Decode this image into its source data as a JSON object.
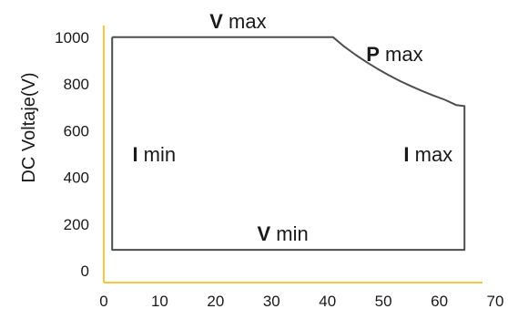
{
  "chart_data": {
    "type": "line",
    "title": "",
    "xlabel": "",
    "ylabel": "DC Voltaje(V)",
    "xlim": [
      0,
      70
    ],
    "ylim": [
      -50,
      1050
    ],
    "x_ticks": [
      0,
      10,
      20,
      30,
      40,
      50,
      60,
      70
    ],
    "y_ticks": [
      0,
      200,
      400,
      600,
      800,
      1000
    ],
    "grid": false,
    "legend": "none",
    "axis_color": "#f5c842",
    "line_color": "#4d4d4d",
    "series": [
      {
        "points": [
          [
            1.5,
            1000
          ],
          [
            41,
            1000
          ],
          [
            43,
            960
          ],
          [
            45,
            925
          ],
          [
            47,
            893
          ],
          [
            49,
            864
          ],
          [
            51,
            837
          ],
          [
            53,
            812
          ],
          [
            55,
            790
          ],
          [
            57,
            769
          ],
          [
            59,
            750
          ],
          [
            61,
            732
          ],
          [
            63,
            710
          ],
          [
            64.5,
            705
          ],
          [
            64.5,
            90
          ],
          [
            1.5,
            90
          ],
          [
            1.5,
            1000
          ]
        ]
      }
    ],
    "annotations": [
      {
        "id": "v-max",
        "bold": "V",
        "text": "max",
        "x": 24,
        "y": 1070
      },
      {
        "id": "p-max",
        "bold": "P",
        "text": "max",
        "x": 52,
        "y": 930
      },
      {
        "id": "i-min",
        "bold": "I",
        "text": "min",
        "x": 9,
        "y": 500
      },
      {
        "id": "i-max",
        "bold": "I",
        "text": "max",
        "x": 58,
        "y": 500
      },
      {
        "id": "v-min",
        "bold": "V",
        "text": "min",
        "x": 32,
        "y": 160
      }
    ]
  }
}
